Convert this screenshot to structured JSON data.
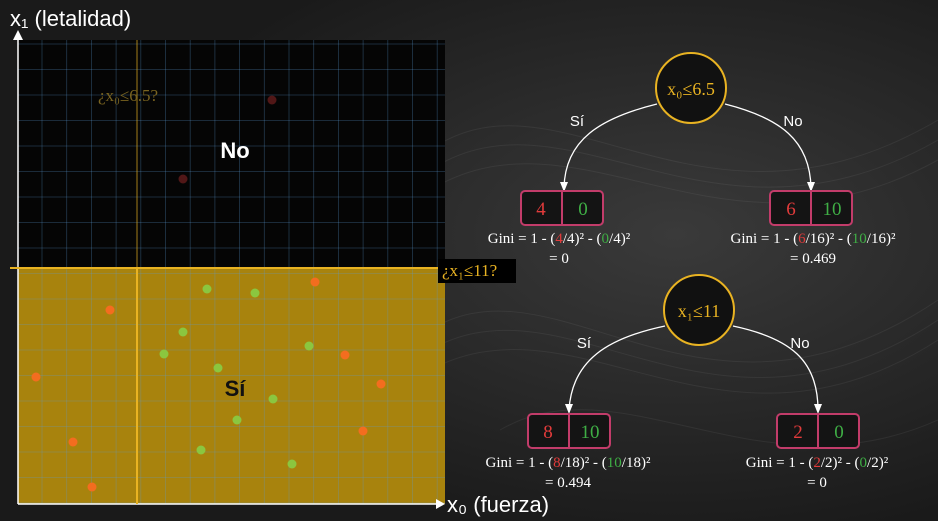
{
  "axes": {
    "y_label": "x₁ (letalidad)",
    "x_label": "x₀ (fuerza)"
  },
  "plot": {
    "region_top_label": "No",
    "region_bottom_label": "Sí",
    "split_x_question": "¿x₀≤6.5?",
    "split_y_question": "¿x₁≤11?"
  },
  "tree1": {
    "node_label": "x₀≤6.5",
    "left_branch": "Sí",
    "right_branch": "No",
    "left_leaf": {
      "red": "4",
      "green": "0"
    },
    "right_leaf": {
      "red": "6",
      "green": "10"
    },
    "left_gini": {
      "prefix": "Gini = 1 - (",
      "a": "4",
      "mid": "/4)² - (",
      "b": "0",
      "suffix": "/4)²",
      "result": "= 0"
    },
    "right_gini": {
      "prefix": "Gini = 1 - (",
      "a": "6",
      "mid": "/16)² - (",
      "b": "10",
      "suffix": "/16)²",
      "result": "= 0.469"
    }
  },
  "tree2": {
    "node_label": "x₁≤11",
    "left_branch": "Sí",
    "right_branch": "No",
    "left_leaf": {
      "red": "8",
      "green": "10"
    },
    "right_leaf": {
      "red": "2",
      "green": "0"
    },
    "left_gini": {
      "prefix": "Gini = 1 - (",
      "a": "8",
      "mid": "/18)² - (",
      "b": "10",
      "suffix": "/18)²",
      "result": "= 0.494"
    },
    "right_gini": {
      "prefix": "Gini = 1 - (",
      "a": "2",
      "mid": "/2)² - (",
      "b": "0",
      "suffix": "/2)²",
      "result": "= 0"
    }
  },
  "colors": {
    "gold": "#e9b322",
    "region_yellow": "#a8830d",
    "leaf_border": "#c23c6a",
    "red_text": "#e23b3b",
    "green_text": "#3fae45",
    "orange_point": "#f36d1f",
    "green_point": "#8bc63f"
  }
}
